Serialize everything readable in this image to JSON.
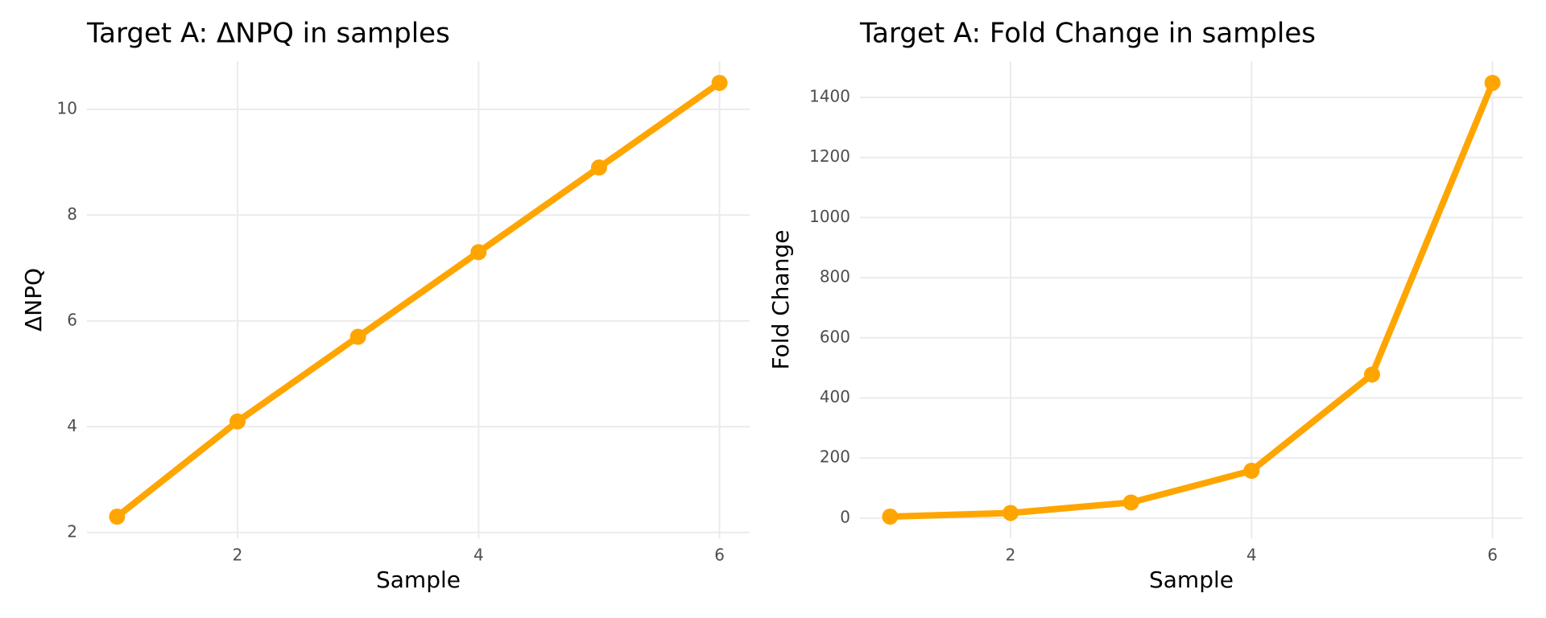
{
  "chart_data": [
    {
      "type": "line",
      "title": "Target A: ΔNPQ in samples",
      "x_label": "Sample",
      "y_label": "ΔNPQ",
      "x": [
        1,
        2,
        3,
        4,
        5,
        6
      ],
      "series": [
        {
          "name": "ΔNPQ",
          "color": "#FFA500",
          "values": [
            2.3,
            4.1,
            5.7,
            7.3,
            8.9,
            10.5
          ]
        }
      ],
      "xlim": [
        0.75,
        6.25
      ],
      "xticks": [
        2,
        4,
        6
      ],
      "ylim": [
        1.89,
        10.91
      ],
      "yticks": [
        2,
        4,
        6,
        8,
        10
      ],
      "grid": true
    },
    {
      "type": "line",
      "title": "Target A: Fold Change in samples",
      "x_label": "Sample",
      "y_label": "Fold Change",
      "x": [
        1,
        2,
        3,
        4,
        5,
        6
      ],
      "series": [
        {
          "name": "Fold Change",
          "color": "#FFA500",
          "values": [
            4.9,
            17.1,
            52,
            157.6,
            477.7,
            1448.2
          ]
        }
      ],
      "xlim": [
        0.75,
        6.25
      ],
      "xticks": [
        2,
        4,
        6
      ],
      "ylim": [
        -67.3,
        1520.4
      ],
      "yticks": [
        0,
        200,
        400,
        600,
        800,
        1000,
        1200,
        1400
      ],
      "grid": true
    }
  ]
}
